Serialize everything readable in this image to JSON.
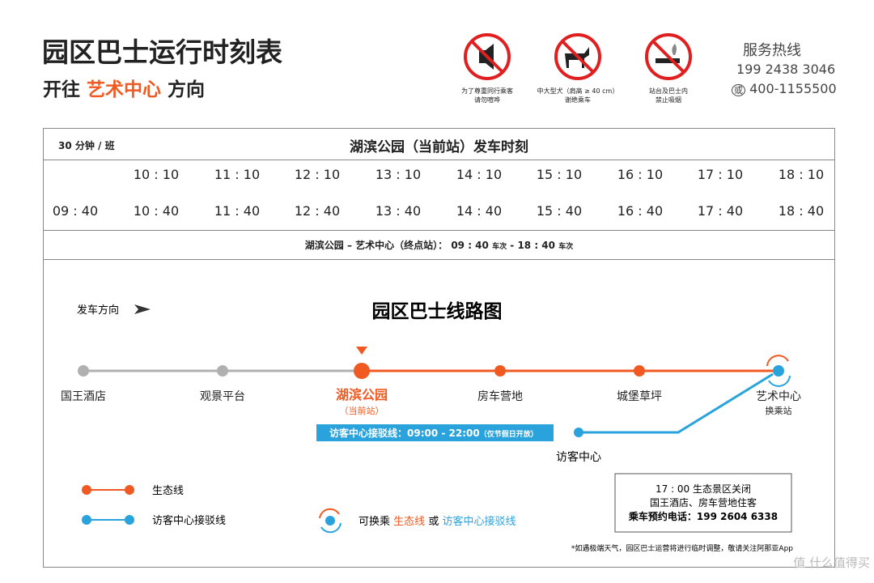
{
  "header": {
    "title": "园区巴士运行时刻表",
    "subtitle": [
      "开往",
      "艺术中心",
      "方向"
    ]
  },
  "notices": [
    {
      "lines": [
        "为了尊重同行乘客",
        "请勿喧哗"
      ]
    },
    {
      "lines": [
        "中大型犬（肩高 ≥ 40 cm）",
        "谢绝乘车"
      ]
    },
    {
      "lines": [
        "站台及巴士内",
        "禁止吸烟"
      ]
    }
  ],
  "hotline": {
    "title": "服务热线",
    "phone": "199 2438 3046",
    "or": "或",
    "phone2": "400-1155500"
  },
  "timetable": {
    "frequency": "30 分钟 / 班",
    "title": "湖滨公园（当前站）发车时刻",
    "rows": [
      [
        "10 : 10",
        "11 : 10",
        "12 : 10",
        "13 : 10",
        "14 : 10",
        "15 : 10",
        "16 : 10",
        "17 : 10",
        "18 : 10"
      ],
      [
        "09 : 40",
        "10 : 40",
        "11 : 40",
        "12 : 40",
        "13 : 40",
        "14 : 40",
        "15 : 40",
        "16 : 40",
        "17 : 40",
        "18 : 40"
      ]
    ],
    "footer": [
      "湖滨公园 – 艺术中心（终点站）： 09 : 40",
      "车次",
      "- 18 : 40",
      "车次"
    ]
  },
  "route": {
    "direction": "发车方向",
    "title": "园区巴士线路图",
    "stations": [
      {
        "name": "国王酒店"
      },
      {
        "name": "观景平台"
      },
      {
        "name": "湖滨公园",
        "note": "（当前站）"
      },
      {
        "name": "房车营地"
      },
      {
        "name": "城堡草坪"
      },
      {
        "name": "艺术中心",
        "note": "换乘站"
      }
    ],
    "shuttle_station": "访客中心",
    "shuttle_label": "访客中心接驳线：09:00 - 22:00",
    "shuttle_note": "（仅节假日开放）"
  },
  "legend": {
    "eco": "生态线",
    "shuttle": "访客中心接驳线",
    "transfer": [
      "可换乘",
      "生态线",
      "或",
      "访客中心接驳线"
    ]
  },
  "info_box": [
    "17 : 00 生态景区关闭",
    "国王酒店、房车营地住客",
    "乘车预约电话：199 2604 6338"
  ],
  "footnote": "*如遇极端天气，园区巴士运营将进行临时调整，敬请关注阿那亚App",
  "watermark": "值 什么值得买"
}
